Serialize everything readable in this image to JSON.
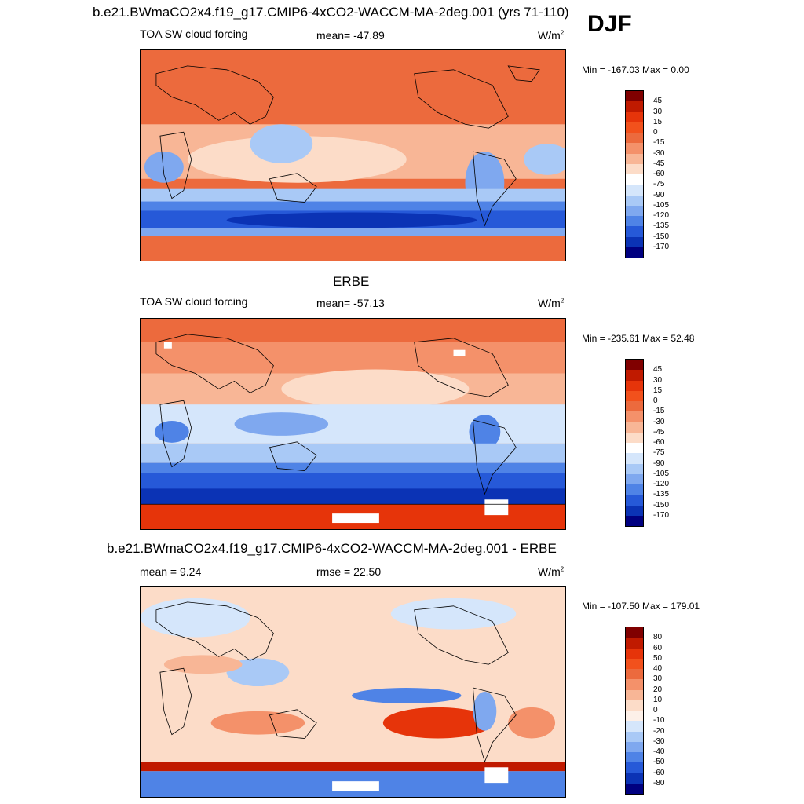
{
  "season": "DJF",
  "panels": [
    {
      "title": "b.e21.BWmaCO2x4.f19_g17.CMIP6-4xCO2-WACCM-MA-2deg.001 (yrs 71-110)",
      "left_label": "TOA SW cloud forcing",
      "center_label": "mean= -47.89",
      "units": "W/m",
      "units_sup": "2",
      "minmax": "Min = -167.03 Max =   0.00",
      "levels": [
        "45",
        "30",
        "15",
        "0",
        "-15",
        "-30",
        "-45",
        "-60",
        "-75",
        "-90",
        "-105",
        "-120",
        "-135",
        "-150",
        "-170"
      ]
    },
    {
      "title": "ERBE",
      "left_label": "TOA SW cloud forcing",
      "center_label": "mean= -57.13",
      "units": "W/m",
      "units_sup": "2",
      "minmax": "Min = -235.61 Max =  52.48",
      "levels": [
        "45",
        "30",
        "15",
        "0",
        "-15",
        "-30",
        "-45",
        "-60",
        "-75",
        "-90",
        "-105",
        "-120",
        "-135",
        "-150",
        "-170"
      ]
    },
    {
      "title": "b.e21.BWmaCO2x4.f19_g17.CMIP6-4xCO2-WACCM-MA-2deg.001 - ERBE",
      "left_label": "mean =   9.24",
      "center_label": "rmse =  22.50",
      "units": "W/m",
      "units_sup": "2",
      "minmax": "Min = -107.50 Max = 179.01",
      "levels": [
        "80",
        "60",
        "50",
        "40",
        "30",
        "20",
        "10",
        "0",
        "-10",
        "-20",
        "-30",
        "-40",
        "-50",
        "-60",
        "-80"
      ]
    }
  ],
  "colors": {
    "bar16": [
      "#800000",
      "#c01a00",
      "#e6340a",
      "#f2511c",
      "#ec6a3d",
      "#f4916a",
      "#f8b696",
      "#fcdcc8",
      "#ffffff",
      "#d5e6fb",
      "#a9c9f6",
      "#7fa8ef",
      "#4f83e6",
      "#2659d8",
      "#0b33b5",
      "#000080"
    ],
    "bar_diff": [
      "#800000",
      "#c01a00",
      "#e6340a",
      "#f2511c",
      "#ec6a3d",
      "#f4916a",
      "#f8b696",
      "#fcdcc8",
      "#fdf0e8",
      "#d5e6fb",
      "#a9c9f6",
      "#7fa8ef",
      "#4f83e6",
      "#2659d8",
      "#0b33b5",
      "#000080"
    ]
  }
}
